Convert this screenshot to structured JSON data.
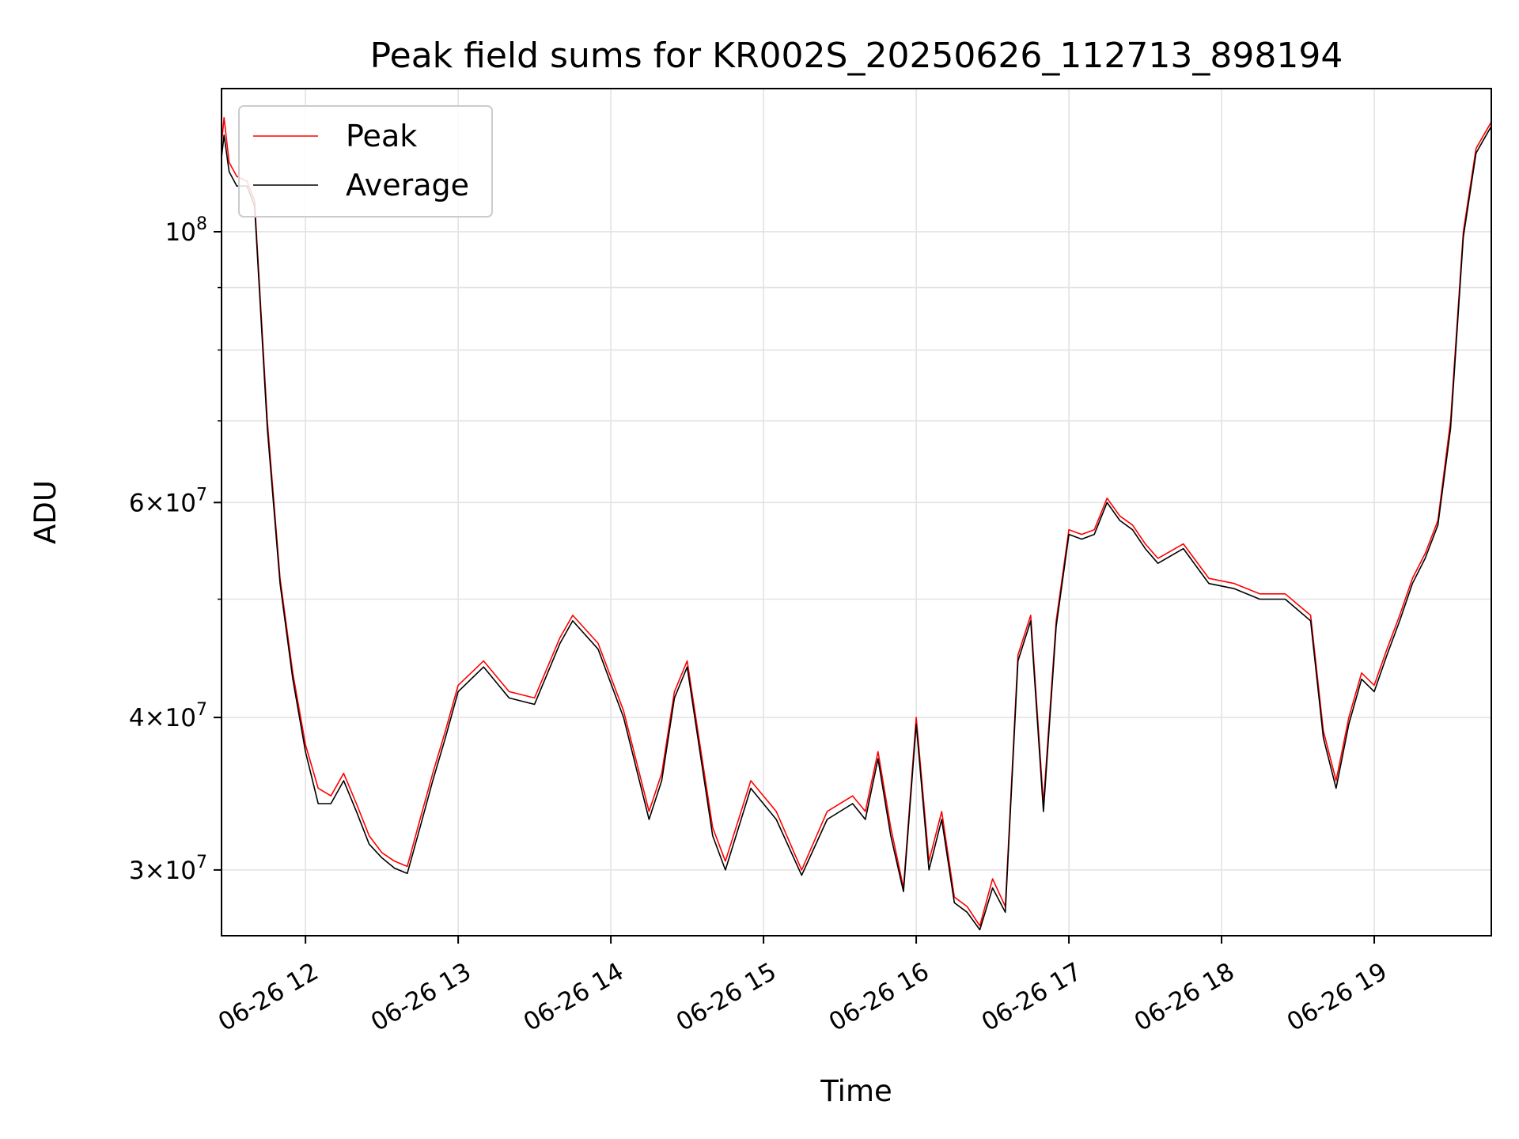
{
  "chart_data": {
    "type": "line",
    "title": "Peak field sums for KR002S_20250626_112713_898194",
    "xlabel": "Time",
    "ylabel": "ADU",
    "y_scale": "log",
    "ylim": [
      26500000,
      131000000
    ],
    "xlim": [
      "2025-06-26 11:27",
      "2025-06-26 19:46"
    ],
    "grid": true,
    "legend_placement": "top-left",
    "x_ticks": [
      "06-26 12",
      "06-26 13",
      "06-26 14",
      "06-26 15",
      "06-26 16",
      "06-26 17",
      "06-26 18",
      "06-26 19"
    ],
    "y_tick_labels": [
      {
        "value": 30000000,
        "mantissa": "3",
        "exponent": "7"
      },
      {
        "value": 40000000,
        "mantissa": "4",
        "exponent": "7"
      },
      {
        "value": 60000000,
        "mantissa": "6",
        "exponent": "7"
      },
      {
        "value": 100000000,
        "mantissa": "",
        "exponent": "8"
      }
    ],
    "y_minor_ticks": [
      50000000,
      70000000,
      80000000,
      90000000
    ],
    "x": [
      "11:27",
      "11:28",
      "11:30",
      "11:33",
      "11:37",
      "11:40",
      "11:45",
      "11:50",
      "11:55",
      "12:00",
      "12:05",
      "12:10",
      "12:15",
      "12:20",
      "12:25",
      "12:30",
      "12:35",
      "12:40",
      "12:45",
      "12:50",
      "12:55",
      "13:00",
      "13:10",
      "13:20",
      "13:30",
      "13:40",
      "13:45",
      "13:55",
      "14:05",
      "14:15",
      "14:20",
      "14:25",
      "14:30",
      "14:35",
      "14:40",
      "14:45",
      "14:55",
      "15:05",
      "15:15",
      "15:25",
      "15:35",
      "15:40",
      "15:45",
      "15:50",
      "15:55",
      "16:00",
      "16:05",
      "16:10",
      "16:15",
      "16:20",
      "16:25",
      "16:30",
      "16:35",
      "16:40",
      "16:45",
      "16:50",
      "16:55",
      "17:00",
      "17:05",
      "17:10",
      "17:15",
      "17:20",
      "17:25",
      "17:30",
      "17:35",
      "17:45",
      "17:55",
      "18:05",
      "18:15",
      "18:25",
      "18:35",
      "18:40",
      "18:45",
      "18:50",
      "18:55",
      "19:00",
      "19:05",
      "19:10",
      "19:15",
      "19:20",
      "19:25",
      "19:30",
      "19:35",
      "19:40",
      "19:45",
      "19:46"
    ],
    "series": [
      {
        "name": "Peak",
        "color": "#ff0000",
        "values": [
          118000000,
          124000000,
          114000000,
          111000000,
          110000000,
          106000000,
          70000000,
          52000000,
          43500000,
          38000000,
          35000000,
          34500000,
          36000000,
          34000000,
          32000000,
          31000000,
          30500000,
          30200000,
          33000000,
          36000000,
          39000000,
          42500000,
          44500000,
          42000000,
          41500000,
          46500000,
          48500000,
          46000000,
          40500000,
          33500000,
          36000000,
          42000000,
          44500000,
          38000000,
          32500000,
          30500000,
          35500000,
          33500000,
          30000000,
          33500000,
          34500000,
          33500000,
          37500000,
          32500000,
          29000000,
          40000000,
          30500000,
          33500000,
          28500000,
          28000000,
          27000000,
          29500000,
          28000000,
          45000000,
          48500000,
          34000000,
          48000000,
          57000000,
          56500000,
          57000000,
          60500000,
          58500000,
          57500000,
          55500000,
          54000000,
          55500000,
          52000000,
          51500000,
          50500000,
          50500000,
          48500000,
          39000000,
          35500000,
          40000000,
          43500000,
          42500000,
          45500000,
          48500000,
          52000000,
          54500000,
          58000000,
          70000000,
          100000000,
          117000000,
          122000000,
          123000000
        ]
      },
      {
        "name": "Average",
        "color": "#000000",
        "values": [
          115000000,
          120000000,
          112000000,
          109000000,
          109000000,
          105000000,
          69000000,
          51500000,
          43000000,
          37500000,
          34000000,
          34000000,
          35500000,
          33500000,
          31500000,
          30700000,
          30100000,
          29800000,
          32500000,
          35500000,
          38500000,
          42000000,
          44000000,
          41500000,
          41000000,
          46000000,
          48000000,
          45500000,
          40000000,
          33000000,
          35500000,
          41500000,
          44000000,
          37500000,
          32000000,
          30000000,
          35000000,
          33000000,
          29700000,
          33000000,
          34000000,
          33000000,
          37000000,
          32000000,
          28800000,
          39500000,
          30000000,
          33000000,
          28200000,
          27700000,
          26800000,
          29000000,
          27700000,
          44500000,
          48000000,
          33500000,
          47500000,
          56500000,
          56000000,
          56500000,
          60000000,
          58000000,
          57000000,
          55000000,
          53500000,
          55000000,
          51500000,
          51000000,
          50000000,
          50000000,
          48000000,
          38500000,
          35000000,
          39500000,
          43000000,
          42000000,
          45000000,
          48000000,
          51500000,
          54000000,
          57500000,
          69000000,
          99000000,
          116000000,
          121000000,
          122000000
        ]
      }
    ]
  }
}
